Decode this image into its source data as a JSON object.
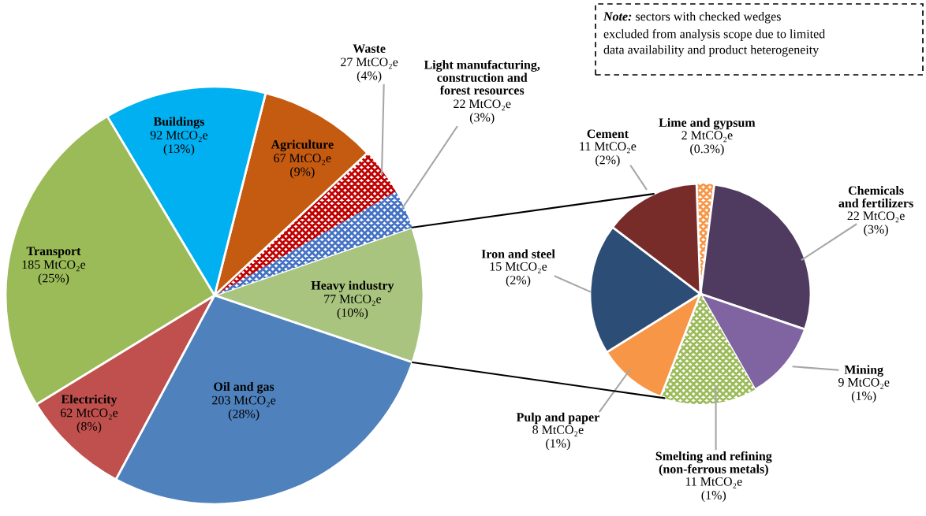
{
  "chart_data": [
    {
      "type": "pie",
      "categories": [
        "Heavy industry",
        "Light manufacturing,\nconstruction and\nforest resources",
        "Waste",
        "Agriculture",
        "Buildings",
        "Transport",
        "Electricity",
        "Oil and gas"
      ],
      "values": [
        77,
        22,
        27,
        67,
        92,
        185,
        62,
        203
      ],
      "colors": [
        "#a9c47f",
        "#4472c4",
        "#c00000",
        "#c55a11",
        "#00b0f0",
        "#9bbb59",
        "#c0504d",
        "#4f81bd"
      ],
      "value_labels": [
        "77 MtCO₂e\n(10%)",
        "22 MtCO₂e\n(3%)",
        "27 MtCO₂e\n(4%)",
        "67 MtCO₂e\n(9%)",
        "92 MtCO₂e\n(13%)",
        "185 MtCO₂e\n(25%)",
        "62 MtCO₂e\n(8%)",
        "203 MtCO₂e\n(28%)"
      ],
      "annotations": [
        "Note: sectors with checked wedges\nexcluded from analysis scope due to limited\ndata availability and product heterogeneity"
      ]
    },
    {
      "type": "pie",
      "categories": [
        "Lime and gypsum",
        "Chemicals\nand fertilizers",
        "Mining",
        "Smelting and refining\n(non-ferrous metals)",
        "Pulp and paper",
        "Iron and steel",
        "Cement"
      ],
      "values": [
        2,
        22,
        9,
        11,
        8,
        15,
        11
      ],
      "colors": [
        "#f79646",
        "#4f3b60",
        "#8064a2",
        "#9bbb59",
        "#f79646",
        "#2c4d75",
        "#772c2a"
      ],
      "value_labels": [
        "2 MtCO₂e\n(0.3%)",
        "22 MtCO₂e\n(3%)",
        "9 MtCO₂e\n(1%)",
        "11 MtCO₂e\n(1%)",
        "8 MtCO₂e\n(1%)",
        "15 MtCO₂e\n(2%)",
        "11 MtCO₂e\n(2%)"
      ]
    }
  ]
}
